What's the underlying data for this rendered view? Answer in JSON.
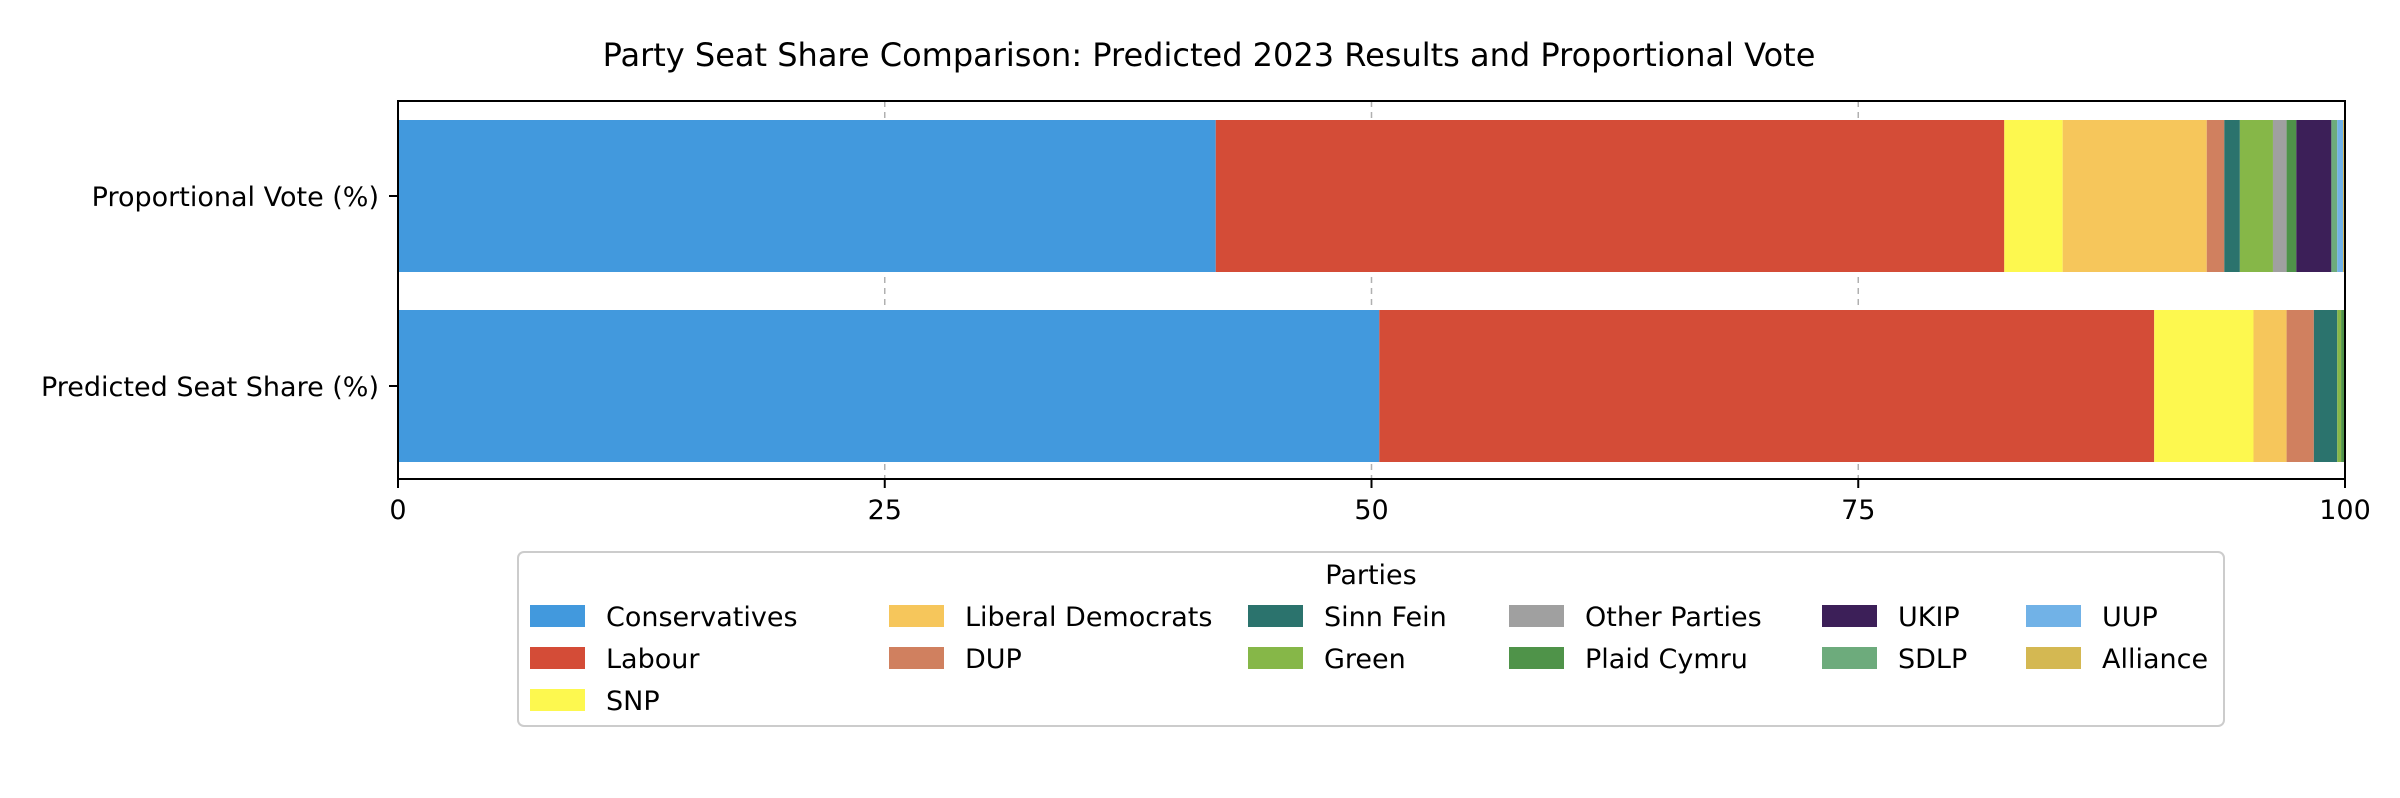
{
  "chart_data": {
    "type": "bar",
    "orientation": "horizontal",
    "stacked": true,
    "title": "Party Seat Share Comparison: Predicted 2023 Results and Proportional Vote",
    "xlabel": "",
    "ylabel": "",
    "xlim": [
      0,
      100
    ],
    "xticks": [
      0,
      25,
      50,
      75,
      100
    ],
    "grid": "x-dashed",
    "categories": [
      "Proportional Vote (%)",
      "Predicted Seat Share (%)"
    ],
    "legend": {
      "title": "Parties",
      "placement": "bottom-center",
      "columns": 7
    },
    "series": [
      {
        "name": "Conservatives",
        "color": "#4299dd",
        "values": [
          42.0,
          50.4
        ]
      },
      {
        "name": "Labour",
        "color": "#d44c37",
        "values": [
          40.5,
          39.8
        ]
      },
      {
        "name": "SNP",
        "color": "#fdf84f",
        "values": [
          3.0,
          5.1
        ]
      },
      {
        "name": "Liberal Democrats",
        "color": "#f6c65b",
        "values": [
          7.4,
          1.7
        ]
      },
      {
        "name": "DUP",
        "color": "#d0805f",
        "values": [
          0.9,
          1.4
        ]
      },
      {
        "name": "Sinn Fein",
        "color": "#2b736d",
        "values": [
          0.8,
          1.2
        ]
      },
      {
        "name": "Green",
        "color": "#86b748",
        "values": [
          1.7,
          0.2
        ]
      },
      {
        "name": "Other Parties",
        "color": "#a0a0a0",
        "values": [
          0.7,
          0.0
        ]
      },
      {
        "name": "Plaid Cymru",
        "color": "#4f9349",
        "values": [
          0.5,
          0.2
        ]
      },
      {
        "name": "UKIP",
        "color": "#3c1f58",
        "values": [
          1.8,
          0.0
        ]
      },
      {
        "name": "SDLP",
        "color": "#6dab7c",
        "values": [
          0.3,
          0.0
        ]
      },
      {
        "name": "UUP",
        "color": "#71b2e7",
        "values": [
          0.3,
          0.0
        ]
      },
      {
        "name": "Alliance",
        "color": "#d4b852",
        "values": [
          0.1,
          0.0
        ]
      }
    ]
  }
}
